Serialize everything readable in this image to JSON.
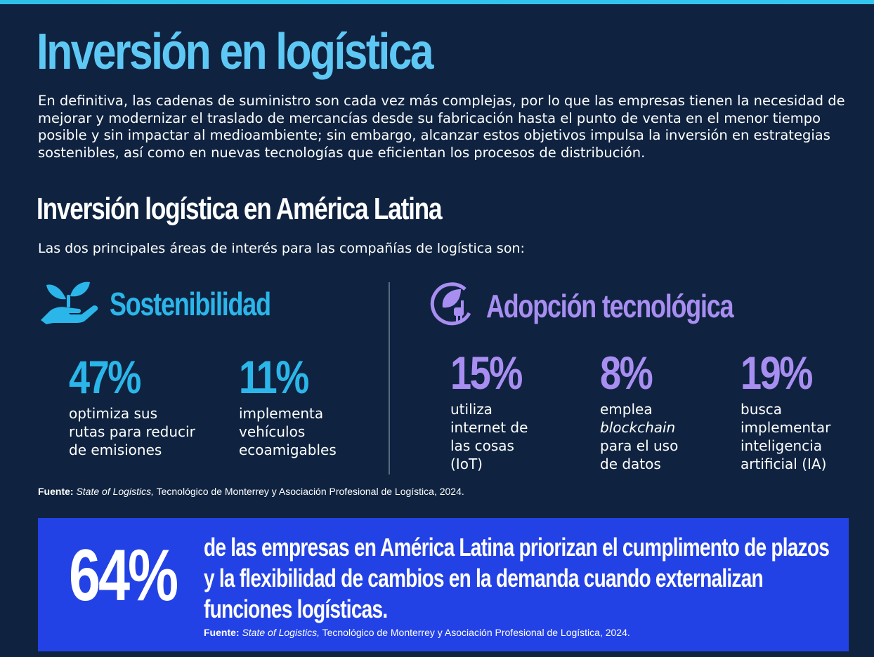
{
  "colors": {
    "background": "#0f2340",
    "accent_blue": "#2bb6ea",
    "title_blue": "#5ec8f5",
    "accent_purple": "#a98ef2",
    "banner_blue": "#2342e6"
  },
  "title": "Inversión en logística",
  "intro": "En definitiva, las cadenas de suministro son cada vez más complejas, por lo que las empresas tienen la necesidad de mejorar y modernizar el traslado de mercancías desde su fabricación hasta el punto de venta en el menor tiempo posible y sin impactar al medioambiente; sin embargo, alcanzar estos objetivos impulsa la inversión en estrategias sostenibles, así como en nuevas tecnologías que eficientan los procesos de distribución.",
  "subtitle": "Inversión logística en América Latina",
  "lead": "Las dos principales áreas de interés para las compañías de logística son:",
  "sostenibilidad": {
    "icon": "hand-plant-icon",
    "label": "Sostenibilidad",
    "stats": [
      {
        "value": "47%",
        "desc_lines": [
          "optimiza sus",
          "rutas para reducir",
          "de emisiones"
        ]
      },
      {
        "value": "11%",
        "desc_lines": [
          "implementa",
          "vehículos",
          "ecoamigables"
        ]
      }
    ]
  },
  "tecnologia": {
    "icon": "leaf-plug-icon",
    "label": "Adopción tecnológica",
    "stats": [
      {
        "value": "15%",
        "desc_lines": [
          "utiliza",
          "internet de",
          "las cosas",
          "(IoT)"
        ]
      },
      {
        "value": "8%",
        "desc_lines": [
          "emplea",
          "blockchain",
          "para el uso",
          "de datos"
        ]
      },
      {
        "value": "19%",
        "desc_lines": [
          "busca",
          "implementar",
          "inteligencia",
          "artificial (IA)"
        ]
      }
    ]
  },
  "source": {
    "label": "Fuente",
    "work": "State of Logistics,",
    "rest": " Tecnológico de Monterrey y Asociación Profesional de Logística, 2024."
  },
  "banner": {
    "value": "64%",
    "lines": [
      "de las empresas en América Latina priorizan el cumplimento de plazos",
      "y la flexibilidad de cambios en la demanda cuando externalizan",
      "funciones logísticas."
    ],
    "source_label": "Fuente:",
    "source_work": "State of Logistics,",
    "source_rest": " Tecnológico de Monterrey y Asociación Profesional de Logística, 2024."
  }
}
